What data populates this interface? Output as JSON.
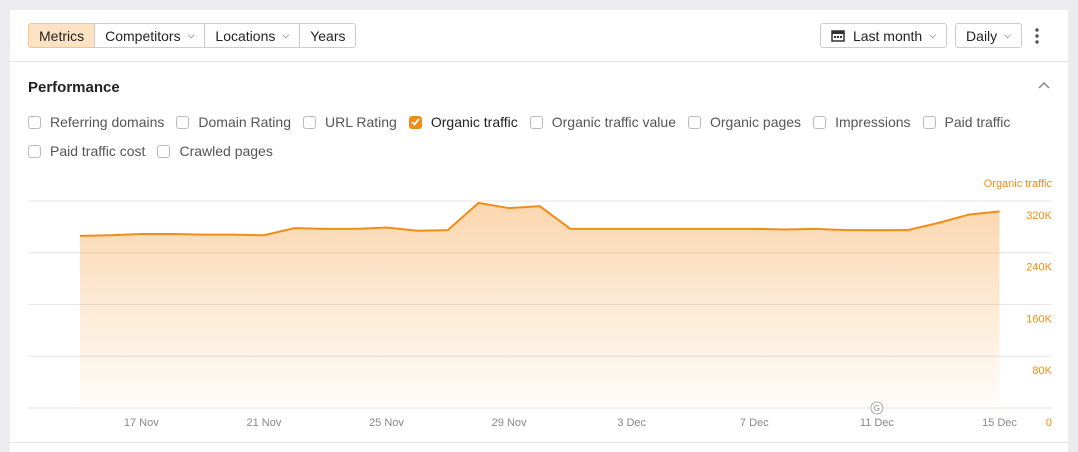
{
  "toolbar": {
    "tabs": [
      "Metrics",
      "Competitors",
      "Locations",
      "Years"
    ],
    "period": "Last month",
    "interval": "Daily"
  },
  "section": {
    "title": "Performance"
  },
  "metrics": [
    {
      "label": "Referring domains",
      "checked": false
    },
    {
      "label": "Domain Rating",
      "checked": false
    },
    {
      "label": "URL Rating",
      "checked": false
    },
    {
      "label": "Organic traffic",
      "checked": true
    },
    {
      "label": "Organic traffic value",
      "checked": false
    },
    {
      "label": "Organic pages",
      "checked": false
    },
    {
      "label": "Impressions",
      "checked": false
    },
    {
      "label": "Paid traffic",
      "checked": false
    },
    {
      "label": "Paid traffic cost",
      "checked": false
    },
    {
      "label": "Crawled pages",
      "checked": false
    }
  ],
  "chart_data": {
    "type": "area",
    "categories": [
      null,
      null,
      "17 Nov",
      null,
      null,
      null,
      "21 Nov",
      null,
      null,
      null,
      "25 Nov",
      null,
      null,
      null,
      "29 Nov",
      null,
      null,
      null,
      "3 Dec",
      null,
      null,
      null,
      "7 Dec",
      null,
      null,
      null,
      "11 Dec",
      null,
      null,
      null,
      "15 Dec"
    ],
    "series": [
      {
        "name": "Organic traffic",
        "color": "#f28c18",
        "values": [
          266000,
          267000,
          269000,
          269000,
          268000,
          268000,
          267000,
          278000,
          277000,
          277000,
          279000,
          274000,
          275000,
          317000,
          309000,
          312000,
          277000,
          277000,
          277000,
          277000,
          277000,
          277000,
          277000,
          276000,
          277000,
          275000,
          275000,
          275000,
          286000,
          299000,
          304000
        ]
      }
    ],
    "ylim": [
      0,
      320000
    ],
    "yticks": [
      0,
      {
        "value": 80000,
        "label": "80K"
      },
      {
        "value": 160000,
        "label": "160K"
      },
      {
        "value": 240000,
        "label": "240K"
      },
      {
        "value": 320000,
        "label": "320K"
      }
    ],
    "grid": true
  }
}
